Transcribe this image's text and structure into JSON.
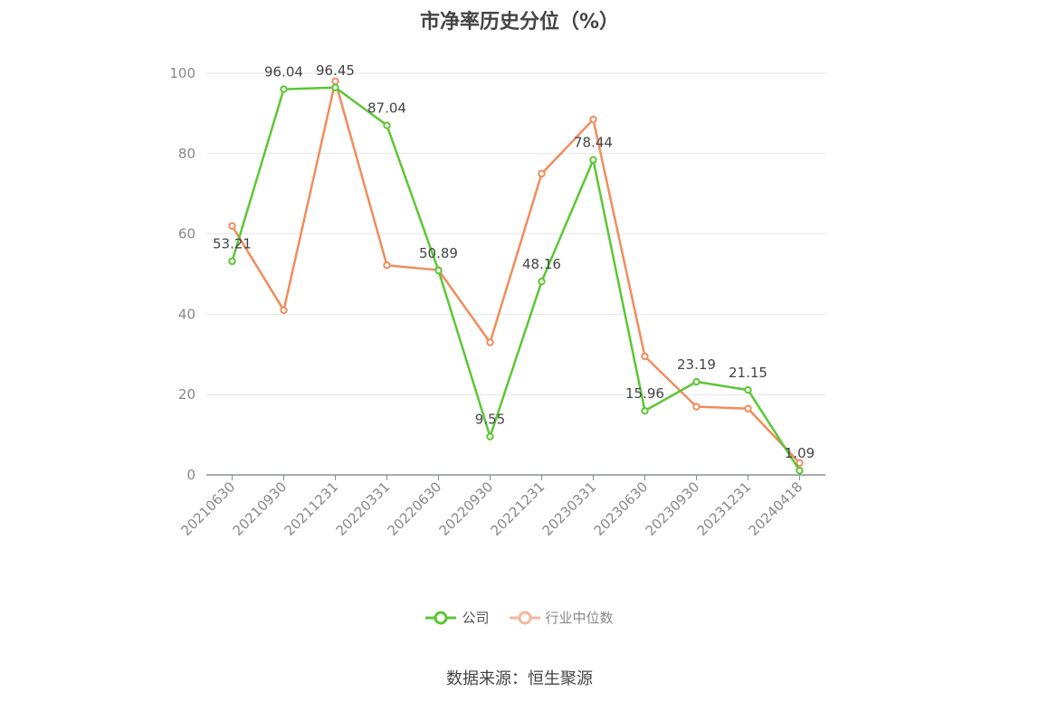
{
  "chart_data": {
    "type": "line",
    "title": "市净率历史分位（%）",
    "categories": [
      "20210630",
      "20210930",
      "20211231",
      "20220331",
      "20220630",
      "20220930",
      "20221231",
      "20230331",
      "20230630",
      "20230930",
      "20231231",
      "20240418"
    ],
    "series": [
      {
        "name": "公司",
        "color": "#5cc734",
        "values": [
          53.21,
          96.04,
          96.45,
          87.04,
          50.89,
          9.55,
          48.16,
          78.44,
          15.96,
          23.19,
          21.15,
          1.09
        ],
        "labels": [
          "53.21",
          "96.04",
          "96.45",
          "87.04",
          "50.89",
          "9.55",
          "48.16",
          "78.44",
          "15.96",
          "23.19",
          "21.15",
          "1.09"
        ]
      },
      {
        "name": "行业中位数",
        "color": "#f28c5c",
        "values": [
          62.0,
          41.0,
          98.0,
          52.2,
          51.0,
          33.0,
          75.0,
          88.5,
          29.5,
          17.0,
          16.5,
          3.0
        ]
      }
    ],
    "ylim": [
      0,
      100
    ],
    "yticks": [
      0,
      20,
      40,
      60,
      80,
      100
    ],
    "grid": true,
    "legend_position": "bottom-center"
  },
  "source_text": "数据来源：恒生聚源"
}
